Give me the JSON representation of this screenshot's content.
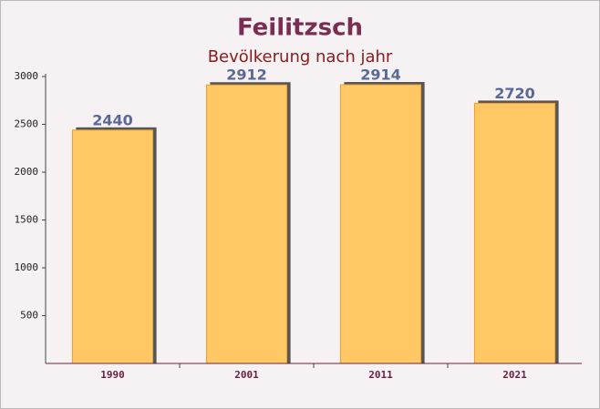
{
  "chart_data": {
    "type": "bar",
    "title": "Feilitzsch",
    "subtitle": "Bevölkerung nach jahr",
    "categories": [
      "1990",
      "2001",
      "2011",
      "2021"
    ],
    "values": [
      2440,
      2912,
      2914,
      2720
    ],
    "color": "#ffc864",
    "ylim": [
      0,
      3000
    ],
    "yticks": [
      500,
      1000,
      1500,
      2000,
      2500,
      3000
    ],
    "grid": false
  }
}
